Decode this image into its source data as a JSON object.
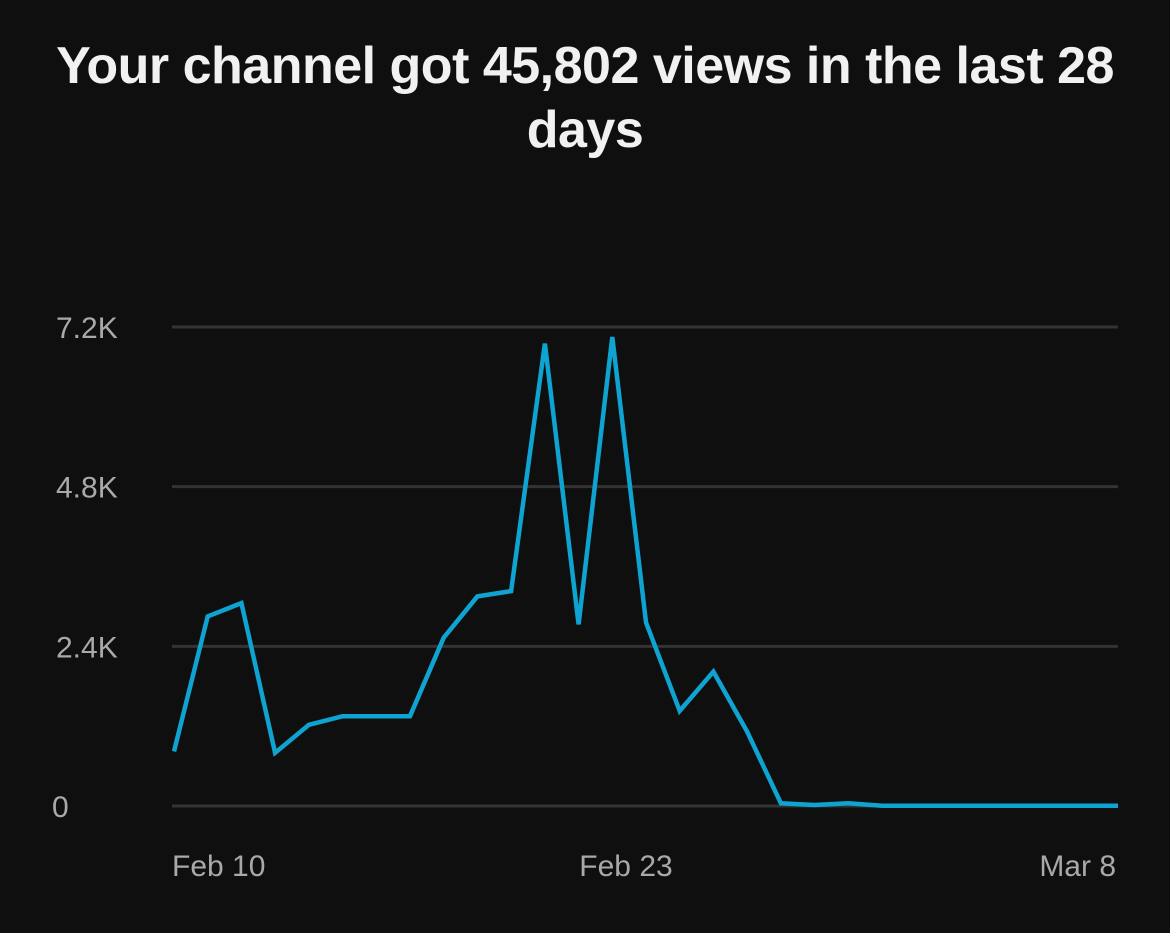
{
  "headline": "Your channel got 45,802 views in the last 28 days",
  "chart_data": {
    "type": "line",
    "x_ticks": [
      "Feb 10",
      "Feb 23",
      "Mar 8"
    ],
    "y_ticks": [
      "0",
      "2.4K",
      "4.8K",
      "7.2K"
    ],
    "y_tick_values": [
      0,
      2400,
      4800,
      7200
    ],
    "ylim": [
      0,
      7200
    ],
    "grid": "horizontal",
    "line_color": "#0fa3d1",
    "grid_color": "#333333",
    "series": [
      {
        "values": [
          820,
          2850,
          3050,
          800,
          1220,
          1350,
          1350,
          1350,
          2530,
          3150,
          3230,
          6950,
          2730,
          7050,
          2760,
          1430,
          2020,
          1120,
          40,
          15,
          40,
          5,
          5,
          5,
          5,
          5,
          5,
          5,
          5
        ]
      }
    ]
  }
}
